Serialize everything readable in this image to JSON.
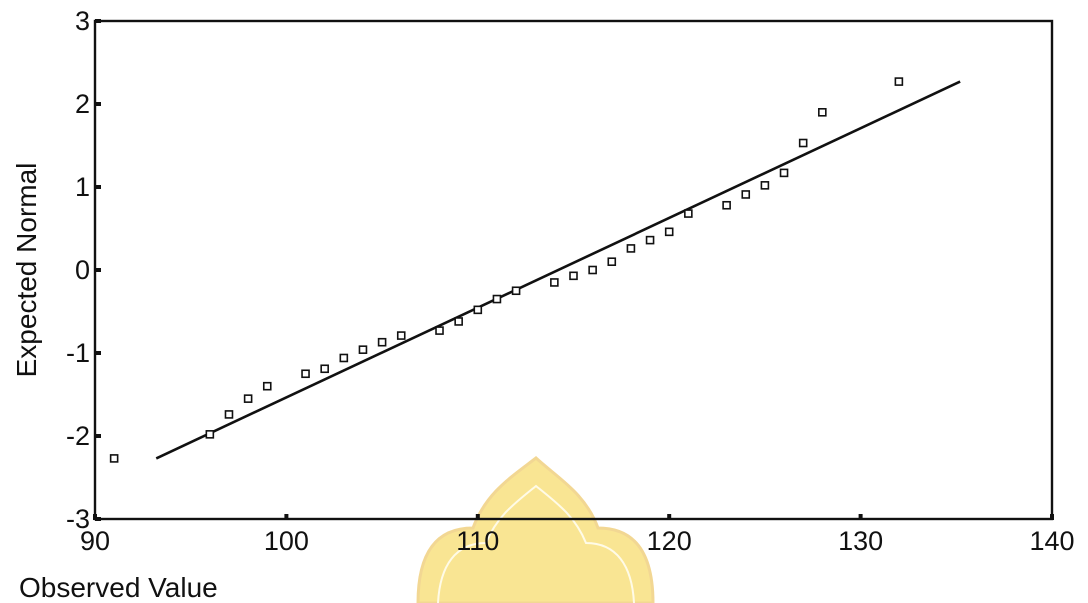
{
  "chart_data": {
    "type": "scatter",
    "title": "",
    "xlabel": "Observed Value",
    "ylabel": "Expected Normal",
    "xlim": [
      90,
      140
    ],
    "ylim": [
      -3,
      3
    ],
    "xticks": [
      "90",
      "100",
      "110",
      "120",
      "130",
      "140"
    ],
    "yticks": [
      "3",
      "2",
      "1",
      "0",
      "-1",
      "-2",
      "-3"
    ],
    "grid": false,
    "points": [
      {
        "x": 91,
        "y": -2.27
      },
      {
        "x": 96,
        "y": -1.98
      },
      {
        "x": 97,
        "y": -1.74
      },
      {
        "x": 98,
        "y": -1.55
      },
      {
        "x": 99,
        "y": -1.4
      },
      {
        "x": 101,
        "y": -1.25
      },
      {
        "x": 102,
        "y": -1.19
      },
      {
        "x": 103,
        "y": -1.06
      },
      {
        "x": 104,
        "y": -0.96
      },
      {
        "x": 105,
        "y": -0.87
      },
      {
        "x": 106,
        "y": -0.79
      },
      {
        "x": 108,
        "y": -0.73
      },
      {
        "x": 109,
        "y": -0.62
      },
      {
        "x": 110,
        "y": -0.48
      },
      {
        "x": 111,
        "y": -0.35
      },
      {
        "x": 112,
        "y": -0.25
      },
      {
        "x": 114,
        "y": -0.15
      },
      {
        "x": 115,
        "y": -0.07
      },
      {
        "x": 116,
        "y": 0.0
      },
      {
        "x": 117,
        "y": 0.1
      },
      {
        "x": 118,
        "y": 0.26
      },
      {
        "x": 119,
        "y": 0.36
      },
      {
        "x": 120,
        "y": 0.46
      },
      {
        "x": 121,
        "y": 0.68
      },
      {
        "x": 123,
        "y": 0.78
      },
      {
        "x": 124,
        "y": 0.91
      },
      {
        "x": 125,
        "y": 1.02
      },
      {
        "x": 126,
        "y": 1.17
      },
      {
        "x": 127,
        "y": 1.53
      },
      {
        "x": 128,
        "y": 1.9
      },
      {
        "x": 132,
        "y": 2.27
      }
    ],
    "reference_line": {
      "x": [
        93.2,
        135.2
      ],
      "y": [
        -2.27,
        2.27
      ]
    }
  },
  "cropped_title_text": "",
  "colors": {
    "ink": "#111111",
    "background": "#ffffff",
    "watermark": "#f2c300"
  }
}
